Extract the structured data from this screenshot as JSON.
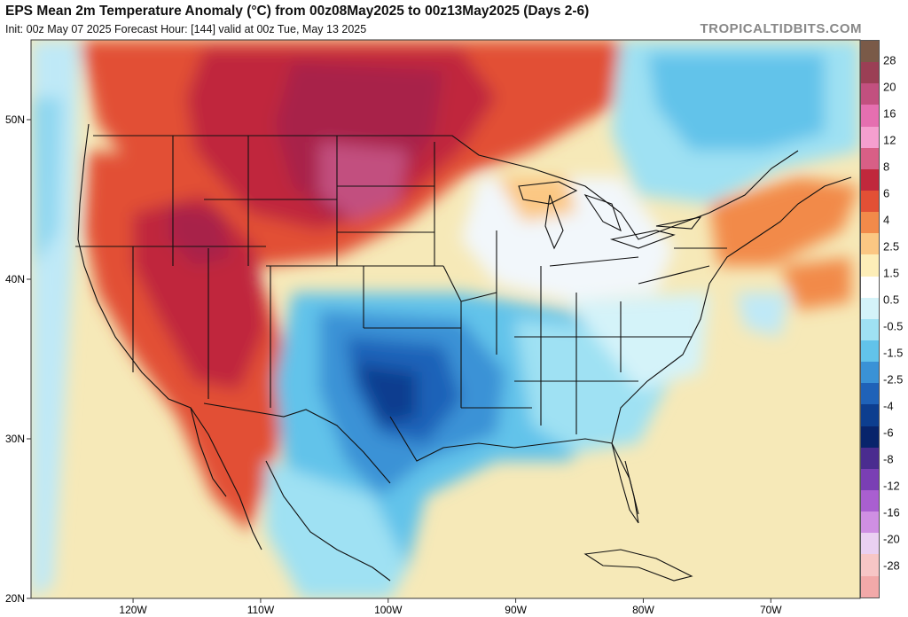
{
  "header": {
    "title": "EPS Mean 2m Temperature Anomaly (°C) from 00z08May2025 to 00z13May2025 (Days 2-6)",
    "subtitle": "Init: 00z May 07 2025   Forecast Hour: [144]   valid at 00z Tue, May 13 2025",
    "brand": "TROPICALTIDBITS.COM"
  },
  "map": {
    "projection": "equirectangular",
    "lon_range": [
      -128,
      -63
    ],
    "lat_range": [
      20,
      55
    ],
    "lat_ticks": [
      {
        "value": 20,
        "label": "20N"
      },
      {
        "value": 30,
        "label": "30N"
      },
      {
        "value": 40,
        "label": "40N"
      },
      {
        "value": 50,
        "label": "50N"
      }
    ],
    "lon_ticks": [
      {
        "value": -120,
        "label": "120W"
      },
      {
        "value": -110,
        "label": "110W"
      },
      {
        "value": -100,
        "label": "100W"
      },
      {
        "value": -90,
        "label": "90W"
      },
      {
        "value": -80,
        "label": "80W"
      },
      {
        "value": -70,
        "label": "70W"
      }
    ],
    "ocean_color": "#f6e9b8",
    "land_default_color": "#d9f3ff",
    "border_color": "#111111"
  },
  "legend": {
    "labels": [
      "28",
      "20",
      "16",
      "12",
      "8",
      "6",
      "4",
      "2.5",
      "1.5",
      "0.5",
      "-0.5",
      "-1.5",
      "-2.5",
      "-4",
      "-6",
      "-8",
      "-12",
      "-16",
      "-20",
      "-28"
    ],
    "colors": [
      "#7a5a48",
      "#9b3f55",
      "#c2507f",
      "#e56fb0",
      "#f59fcf",
      "#d85f86",
      "#c0283c",
      "#e25035",
      "#f28a4a",
      "#fbc783",
      "#fdeeb8",
      "#ffffff",
      "#d4f3f9",
      "#9fe1f3",
      "#62c3ea",
      "#3a92d6",
      "#1f62b8",
      "#0d3e8f",
      "#08246b",
      "#4a2c8f",
      "#7a3fb4",
      "#a95fd0",
      "#cf8fe3",
      "#ead0f2",
      "#f7c6c6",
      "#f2a9a9"
    ]
  }
}
